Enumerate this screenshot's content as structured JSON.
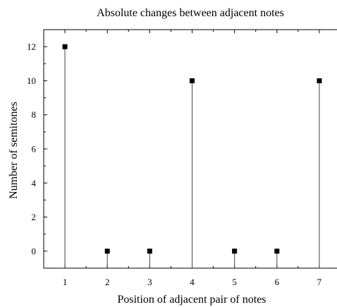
{
  "chart_data": {
    "type": "scatter",
    "title": "Absolute changes between adjacent notes",
    "xlabel": "Position of adjacent pair of notes",
    "ylabel": "Number of semitones",
    "x": [
      1,
      2,
      3,
      4,
      5,
      6,
      7
    ],
    "y": [
      12,
      0,
      0,
      10,
      0,
      0,
      10
    ],
    "xlim": [
      0.5,
      7.5
    ],
    "ylim": [
      -1,
      13
    ],
    "xticks": [
      "1",
      "2",
      "3",
      "4",
      "5",
      "6",
      "7"
    ],
    "yticks": [
      "0",
      "2",
      "4",
      "6",
      "8",
      "10",
      "12"
    ],
    "drop_lines": true,
    "grid": false,
    "legend": "none",
    "marker_color": "#000000"
  }
}
